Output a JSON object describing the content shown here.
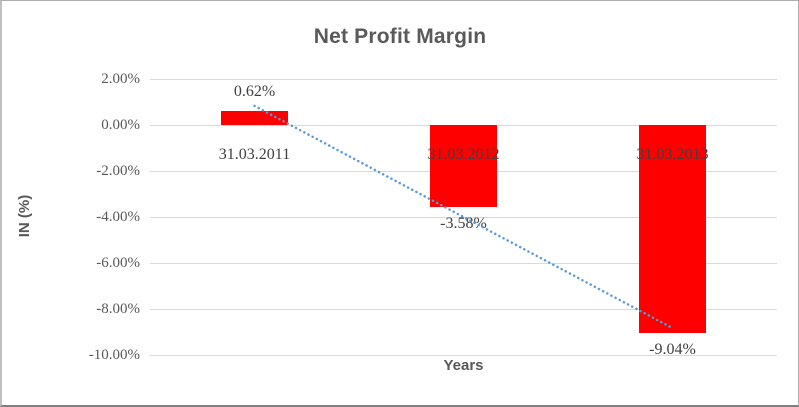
{
  "frame": {
    "background": "#ffffff",
    "border_color": "#acacac"
  },
  "chart_data": {
    "type": "bar",
    "title": "Net Profit Margin",
    "xlabel": "Years",
    "ylabel": "IN (%)",
    "categories": [
      "31.03.2011",
      "31.03.2012",
      "31.03.2013"
    ],
    "values": [
      0.62,
      -3.58,
      -9.04
    ],
    "data_labels": [
      "0.62%",
      "-3.58%",
      "-9.04%"
    ],
    "bar_color": "#ff0000",
    "ylim": [
      -10,
      2
    ],
    "grid": true,
    "gridline_color": "#d9d9d9",
    "legend": "none",
    "y_ticks": [
      {
        "value": 2,
        "label": "2.00%"
      },
      {
        "value": 0,
        "label": "0.00%"
      },
      {
        "value": -2,
        "label": "-2.00%"
      },
      {
        "value": -4,
        "label": "-4.00%"
      },
      {
        "value": -6,
        "label": "-6.00%"
      },
      {
        "value": -8,
        "label": "-8.00%"
      },
      {
        "value": -10,
        "label": "-10.00%"
      }
    ],
    "trendline": {
      "type": "linear",
      "style": "dotted",
      "color": "#5b9bd5",
      "start": {
        "category_index": 0,
        "value": 0.83
      },
      "end": {
        "category_index": 2,
        "value": -8.83
      }
    },
    "title_color": "#595959",
    "axis_title_color": "#595959",
    "tick_color": "#595959",
    "label_color": "#404040"
  }
}
